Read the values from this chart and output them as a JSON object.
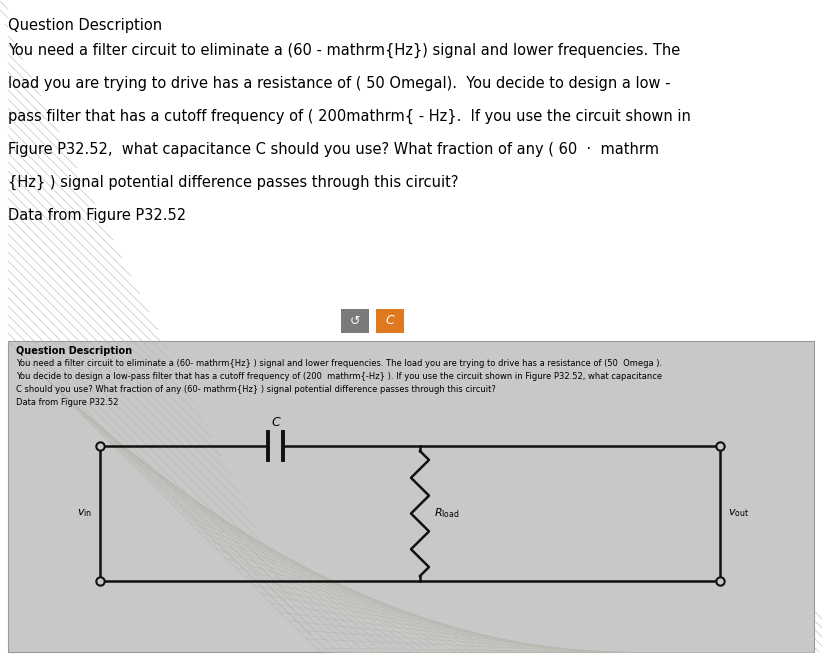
{
  "title_text": "Question Description",
  "paragraph1": "You need a filter circuit to eliminate a (60 - mathrm{Hz}) signal and lower frequencies. The",
  "paragraph2": "load you are trying to drive has a resistance of ( 50 Omegal).  You decide to design a low -",
  "paragraph3": "pass filter that has a cutoff frequency of ( 200mathrm{ - Hz}.  If you use the circuit shown in",
  "paragraph4": "Figure P32.52,  what capacitance C should you use? What fraction of any ( 60  ·  mathrm",
  "paragraph5": "{Hz} ) signal potential difference passes through this circuit?",
  "data_from": "Data from Figure P32.52",
  "btn1_color": "#7a7a7a",
  "btn2_color": "#e07820",
  "btn_symbol1": "↺",
  "btn_symbol2": "C",
  "panel_bg": "#c8c8c8",
  "panel_border": "#999999",
  "panel_title": "Question Description",
  "panel_line1": "You need a filter circuit to eliminate a (60- mathrm{Hz} ) signal and lower frequencies. The load you are trying to drive has a resistance of (50  Omega ).",
  "panel_line2": "You decide to design a low-pass filter that has a cutoff frequency of (200  mathrm{-Hz} ). If you use the circuit shown in Figure P32.52, what capacitance",
  "panel_line3": "C should you use? What fraction of any (60- mathrm{Hz} ) signal potential difference passes through this circuit?",
  "panel_line4": "Data from Figure P32.52",
  "hatch_color": "#b8b8b0",
  "wire_color": "#111111",
  "cap_label": "C",
  "rload_label": "R",
  "rload_sub": "load",
  "vin_label": "v",
  "vin_sub": "in",
  "vout_label": "v",
  "vout_sub": "out"
}
